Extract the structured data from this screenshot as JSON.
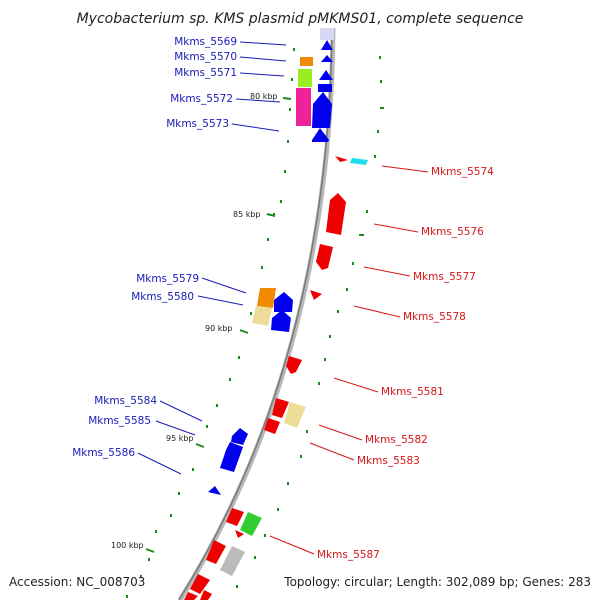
{
  "title": "Mycobacterium sp. KMS plasmid pMKMS01, complete sequence",
  "footer": {
    "accession": "Accession: NC_008703",
    "topology": "Topology: circular; Length: 302,089 bp; Genes: 283"
  },
  "ticks": [
    "80 kbp",
    "85 kbp",
    "90 kbp",
    "95 kbp",
    "100 kbp"
  ],
  "genes_reverse": [
    "Mkms_5569",
    "Mkms_5570",
    "Mkms_5571",
    "Mkms_5572",
    "Mkms_5573",
    "Mkms_5579",
    "Mkms_5580",
    "Mkms_5584",
    "Mkms_5585",
    "Mkms_5586"
  ],
  "genes_forward": [
    "Mkms_5574",
    "Mkms_5576",
    "Mkms_5577",
    "Mkms_5578",
    "Mkms_5581",
    "Mkms_5582",
    "Mkms_5583",
    "Mkms_5587"
  ],
  "colors": {
    "backbone": "#8a8a8a",
    "reverse_strand": "#0000ee",
    "forward_strand": "#ee0000",
    "tick": "#1a8a1a",
    "orange": "#f08a00",
    "lime": "#99ee22",
    "magenta": "#ee2299",
    "tan": "#eedd99",
    "cyan": "#22ddee",
    "green": "#33cc33",
    "gray": "#bbbbbb"
  }
}
